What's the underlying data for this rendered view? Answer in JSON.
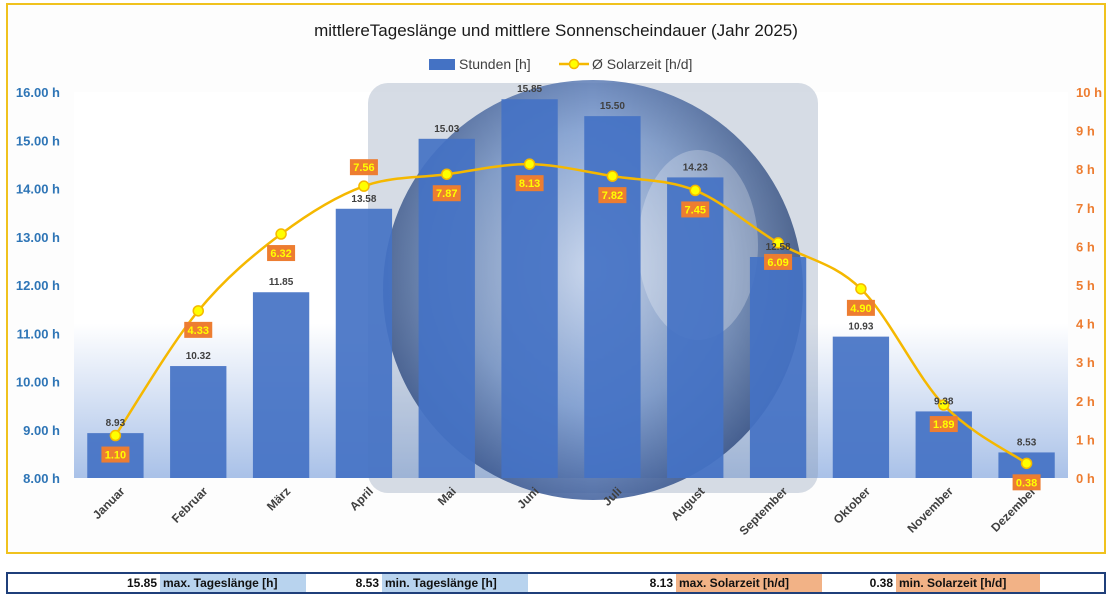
{
  "chart_data": {
    "type": "bar+line",
    "title": "mittlereTageslänge und mittlere Sonnenscheindauer (Jahr 2025)",
    "legend_position": "top-center",
    "categories": [
      "Januar",
      "Februar",
      "März",
      "April",
      "Mai",
      "Juni",
      "Juli",
      "August",
      "September",
      "Oktober",
      "November",
      "Dezember"
    ],
    "series": [
      {
        "name": "Stunden [h]",
        "kind": "bar",
        "axis": "left",
        "color": "#4472c4",
        "values": [
          8.93,
          10.32,
          11.85,
          13.58,
          15.03,
          15.85,
          15.5,
          14.23,
          12.58,
          10.93,
          9.38,
          8.53
        ],
        "labels": [
          "8.93",
          "10.32",
          "11.85",
          "13.58",
          "15.03",
          "15.85",
          "15.50",
          "14.23",
          "12.58",
          "10.93",
          "9.38",
          "8.53"
        ]
      },
      {
        "name": "Ø Solarzeit [h/d]",
        "kind": "line",
        "axis": "right",
        "color": "#f5b800",
        "marker_fill": "#ffff00",
        "label_bg": "#ed7d31",
        "values": [
          1.1,
          4.33,
          6.32,
          7.56,
          7.87,
          8.13,
          7.82,
          7.45,
          6.09,
          4.9,
          1.89,
          0.38
        ],
        "labels": [
          "1.10",
          "4.33",
          "6.32",
          "7.56",
          "7.87",
          "8.13",
          "7.82",
          "7.45",
          "6.09",
          "4.90",
          "1.89",
          "0.38"
        ]
      }
    ],
    "y_left": {
      "range": [
        8,
        16
      ],
      "ticks": [
        8,
        9,
        10,
        11,
        12,
        13,
        14,
        15,
        16
      ],
      "tick_labels": [
        "8.00 h",
        "9.00 h",
        "10.00 h",
        "11.00 h",
        "12.00 h",
        "13.00 h",
        "14.00 h",
        "15.00 h",
        "16.00 h"
      ],
      "color": "#2e75b6"
    },
    "y_right": {
      "range": [
        0,
        10
      ],
      "ticks": [
        0,
        1,
        2,
        3,
        4,
        5,
        6,
        7,
        8,
        9,
        10
      ],
      "tick_labels": [
        "0 h",
        "1 h",
        "2 h",
        "3 h",
        "4 h",
        "5 h",
        "6 h",
        "7 h",
        "8 h",
        "9 h",
        "10 h"
      ],
      "color": "#ed7d31"
    },
    "grid": false
  },
  "summary": {
    "max_day_value": "15.85",
    "max_day_label": "max. Tageslänge [h]",
    "min_day_value": "8.53",
    "min_day_label": "min. Tageslänge [h]",
    "max_solar_value": "8.13",
    "max_solar_label": "max. Solarzeit [h/d]",
    "min_solar_value": "0.38",
    "min_solar_label": "min. Solarzeit [h/d]"
  }
}
